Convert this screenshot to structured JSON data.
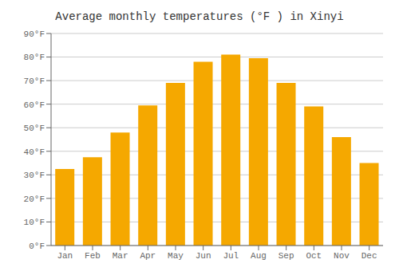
{
  "chart_data": {
    "type": "bar",
    "title": "Average monthly temperatures (°F ) in Xinyi",
    "categories": [
      "Jan",
      "Feb",
      "Mar",
      "Apr",
      "May",
      "Jun",
      "Jul",
      "Aug",
      "Sep",
      "Oct",
      "Nov",
      "Dec"
    ],
    "values": [
      32.5,
      37.5,
      48,
      59.5,
      69,
      78,
      81,
      79.5,
      69,
      59,
      46,
      35
    ],
    "color": "#F5A800",
    "ylim": [
      0,
      90
    ],
    "yticks": [
      {
        "value": 0,
        "label": "0°F"
      },
      {
        "value": 10,
        "label": "10°F"
      },
      {
        "value": 20,
        "label": "20°F"
      },
      {
        "value": 30,
        "label": "30°F"
      },
      {
        "value": 40,
        "label": "40°F"
      },
      {
        "value": 50,
        "label": "50°F"
      },
      {
        "value": 60,
        "label": "60°F"
      },
      {
        "value": 70,
        "label": "70°F"
      },
      {
        "value": 80,
        "label": "80°F"
      },
      {
        "value": 90,
        "label": "90°F"
      }
    ],
    "grid": true
  }
}
